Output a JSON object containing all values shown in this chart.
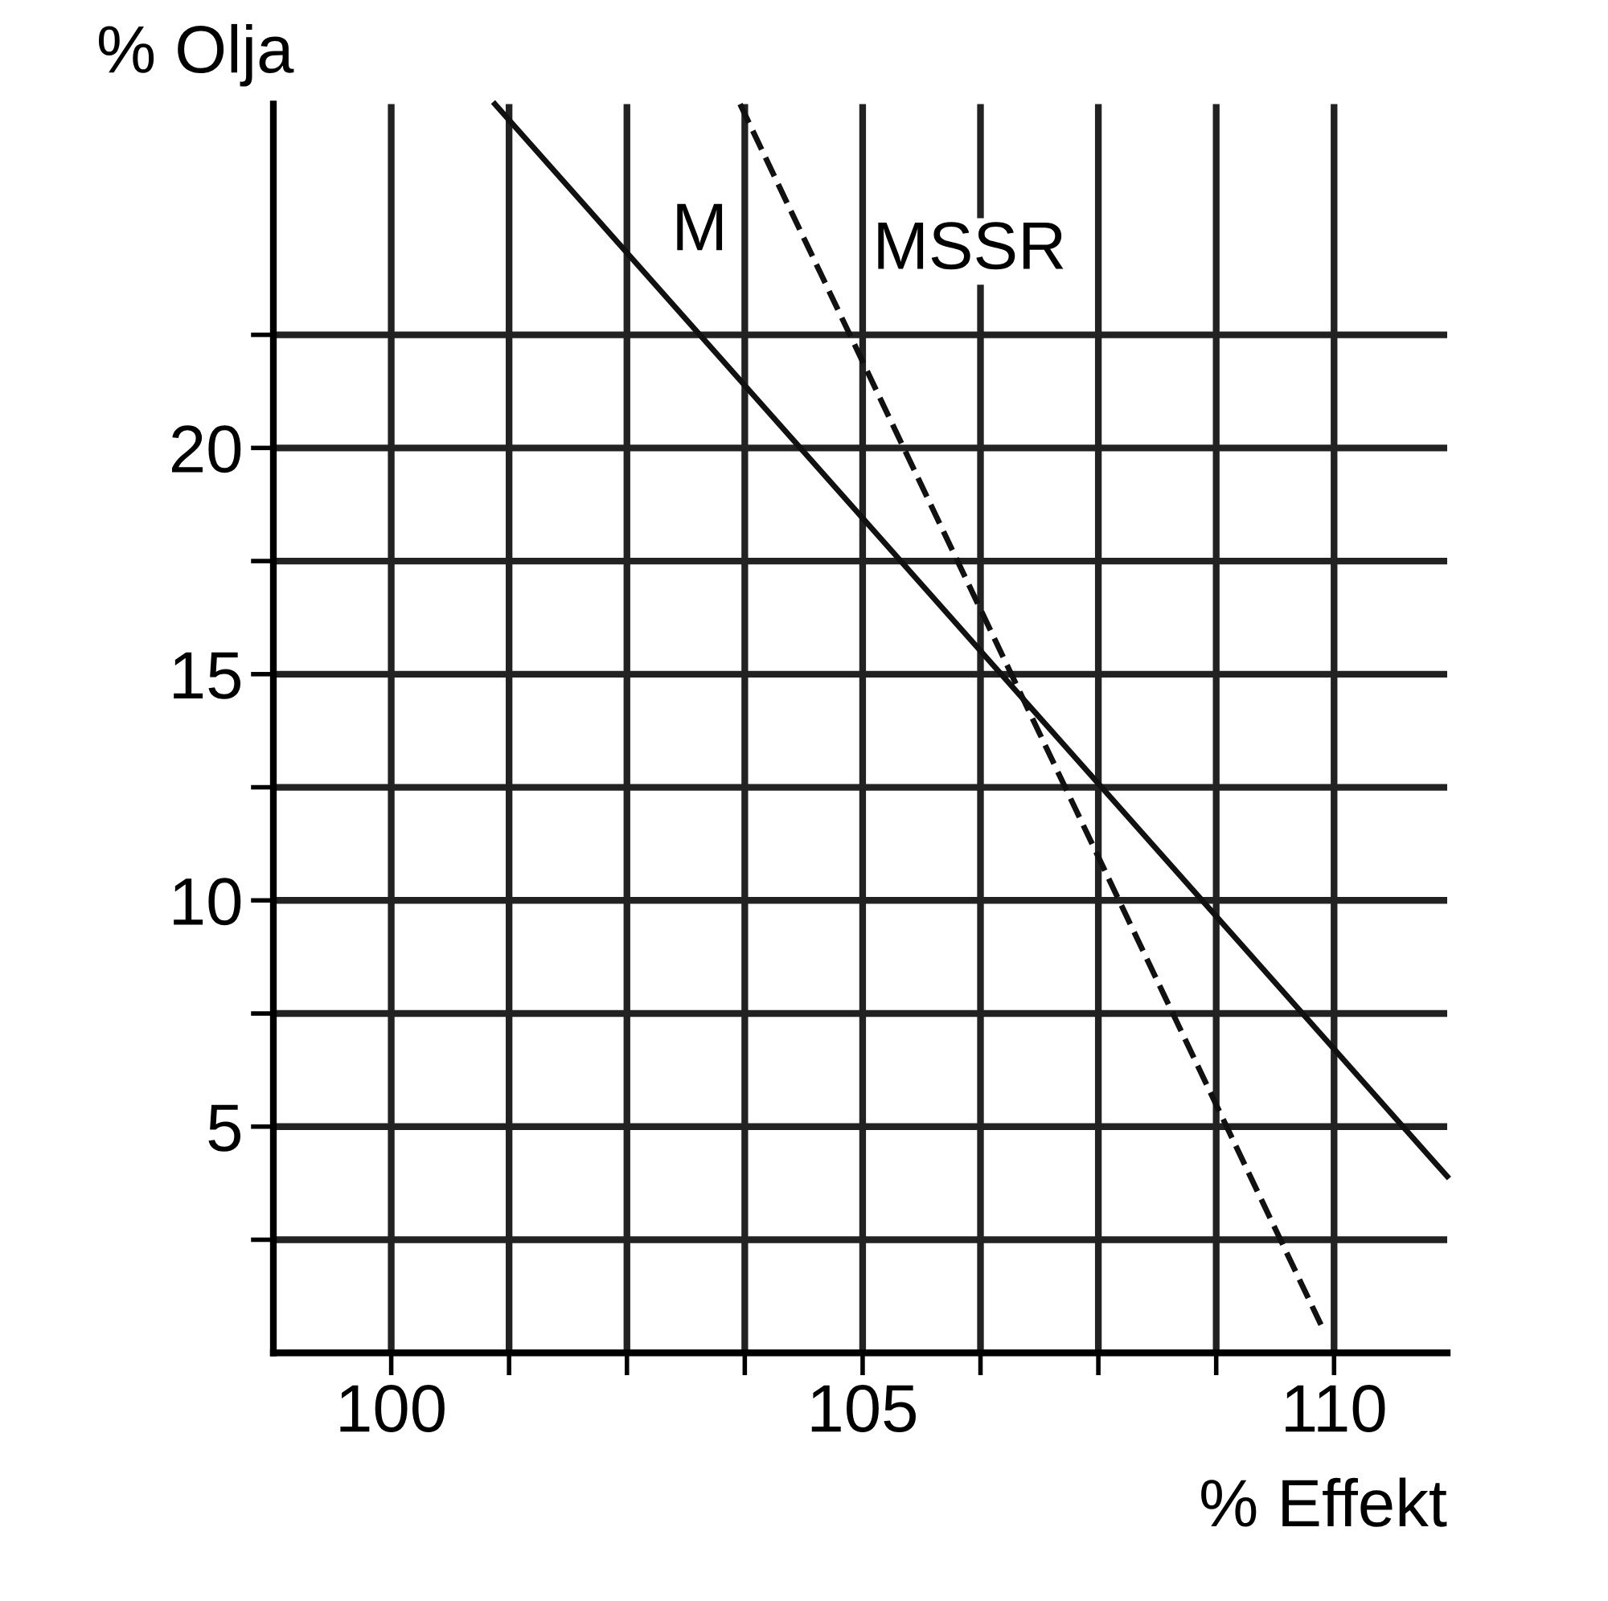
{
  "chart_data": {
    "type": "line",
    "xlabel": "% Effekt",
    "ylabel": "% Olja",
    "xlim": [
      98.75,
      111.2
    ],
    "ylim": [
      0,
      27.6
    ],
    "xticks": [
      100,
      {
        "value": 101.25,
        "label": null
      },
      {
        "value": 102.5,
        "label": null
      },
      {
        "value": 103.75,
        "label": null
      },
      105,
      {
        "value": 106.25,
        "label": null
      },
      {
        "value": 107.5,
        "label": null
      },
      {
        "value": 108.75,
        "label": null
      },
      110
    ],
    "yticks": [
      {
        "value": 2.5,
        "label": null
      },
      5,
      {
        "value": 7.5,
        "label": null
      },
      10,
      {
        "value": 12.5,
        "label": null
      },
      15,
      {
        "value": 17.5,
        "label": null
      },
      20,
      {
        "value": 22.5,
        "label": null
      }
    ],
    "grid": true,
    "series": [
      {
        "name": "M",
        "color": "#111111",
        "line_style": "solid",
        "x": [
          101.1,
          111.2
        ],
        "values": [
          27.6,
          3.9
        ]
      },
      {
        "name": "MSSR",
        "color": "#111111",
        "line_style": "dashed",
        "x": [
          103.7,
          109.9
        ],
        "values": [
          27.6,
          0.45
        ]
      }
    ]
  }
}
